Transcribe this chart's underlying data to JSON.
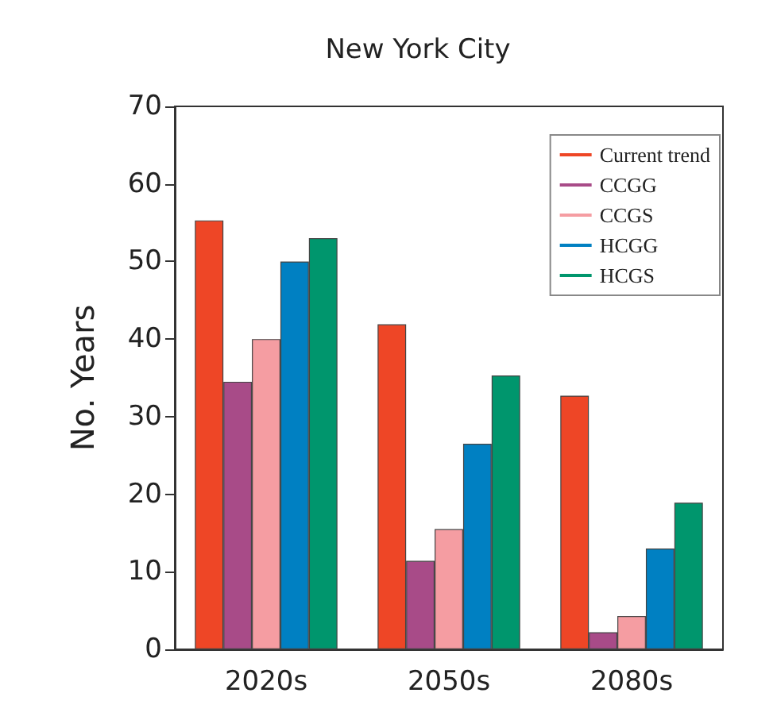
{
  "chart_data": {
    "type": "bar",
    "title": "New York City",
    "ylabel": "No. Years",
    "categories": [
      "2020s",
      "2050s",
      "2080s"
    ],
    "series": [
      {
        "name": "Current trend",
        "color": "#ee4626",
        "values": [
          55.3,
          41.9,
          32.7
        ]
      },
      {
        "name": "CCGG",
        "color": "#a84b88",
        "values": [
          34.5,
          11.4,
          2.2
        ]
      },
      {
        "name": "CCGS",
        "color": "#f59da2",
        "values": [
          40,
          15.5,
          4.3
        ]
      },
      {
        "name": "HCGG",
        "color": "#0080c2",
        "values": [
          50,
          26.5,
          13
        ]
      },
      {
        "name": "HCGS",
        "color": "#00966d",
        "values": [
          53,
          35.3,
          18.9
        ]
      }
    ],
    "ylim": [
      0,
      70
    ],
    "yticks": [
      0,
      10,
      20,
      30,
      40,
      50,
      60,
      70
    ],
    "grid": false,
    "legend": "top right"
  }
}
